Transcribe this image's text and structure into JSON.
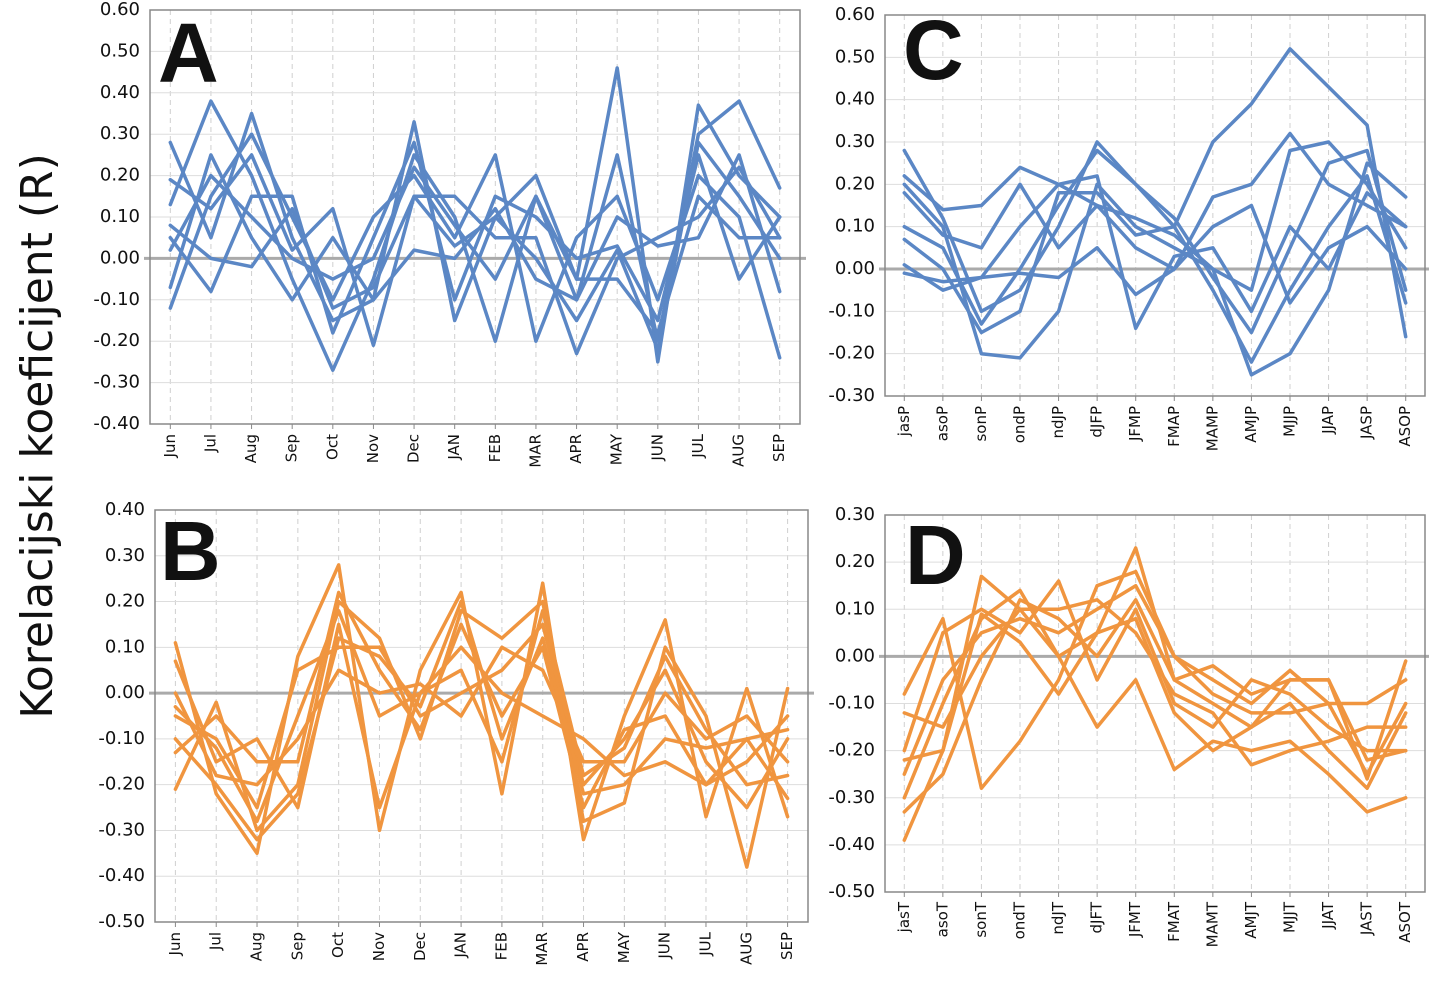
{
  "ylabel": "Korelacijski koeficijent (R)",
  "chart_data": [
    {
      "type": "line",
      "panel_label": "A",
      "color": "#5b87c5",
      "grid": true,
      "categories": [
        "Jun",
        "Jul",
        "Aug",
        "Sep",
        "Oct",
        "Nov",
        "Dec",
        "JAN",
        "FEB",
        "MAR",
        "APR",
        "MAY",
        "JUN",
        "JUL",
        "AUG",
        "SEP"
      ],
      "ylim": [
        -0.4,
        0.6
      ],
      "yticks": [
        {
          "value": 0.6,
          "label": "0.60"
        },
        {
          "value": 0.5,
          "label": "0.50"
        },
        {
          "value": 0.4,
          "label": "0.40"
        },
        {
          "value": 0.3,
          "label": "0.30"
        },
        {
          "value": 0.2,
          "label": "0.20"
        },
        {
          "value": 0.1,
          "label": "0.10"
        },
        {
          "value": 0,
          "label": "0.00"
        },
        {
          "value": -0.1,
          "label": "-0.10"
        },
        {
          "value": -0.2,
          "label": "-0.20"
        },
        {
          "value": -0.3,
          "label": "-0.30"
        },
        {
          "value": -0.4,
          "label": "-0.40"
        }
      ],
      "series": [
        {
          "values": [
            0.28,
            0.05,
            0.35,
            0.05,
            -0.15,
            -0.1,
            0.33,
            -0.15,
            0.1,
            0.2,
            -0.05,
            0.46,
            -0.25,
            0.37,
            0.2,
            0.1
          ]
        },
        {
          "values": [
            0.13,
            0.38,
            0.2,
            -0.05,
            -0.27,
            -0.05,
            0.25,
            0.1,
            -0.2,
            0.15,
            -0.1,
            0.25,
            -0.2,
            0.3,
            0.38,
            0.17
          ]
        },
        {
          "values": [
            -0.12,
            0.15,
            0.3,
            0.1,
            -0.1,
            0.1,
            0.2,
            0.05,
            0.25,
            -0.2,
            0.05,
            0.15,
            -0.1,
            0.2,
            0.1,
            -0.24
          ]
        },
        {
          "values": [
            0.19,
            0.12,
            0.25,
            0.02,
            0.12,
            -0.21,
            0.15,
            0.15,
            0.05,
            0.05,
            -0.23,
            0.0,
            0.05,
            0.1,
            0.22,
            0.05
          ]
        },
        {
          "values": [
            0.05,
            -0.08,
            0.15,
            0.15,
            -0.18,
            0.05,
            0.28,
            -0.1,
            0.15,
            0.1,
            0.0,
            0.03,
            -0.15,
            0.25,
            -0.05,
            0.1
          ]
        },
        {
          "values": [
            -0.07,
            0.25,
            0.05,
            -0.1,
            0.05,
            -0.1,
            0.02,
            0.0,
            0.12,
            -0.05,
            -0.1,
            0.1,
            0.03,
            0.05,
            0.25,
            -0.08
          ]
        },
        {
          "values": [
            0.02,
            0.2,
            0.1,
            0.0,
            -0.05,
            0.0,
            0.22,
            0.08,
            -0.05,
            0.15,
            -0.05,
            -0.05,
            -0.18,
            0.15,
            0.05,
            0.05
          ]
        },
        {
          "values": [
            0.08,
            0.0,
            -0.02,
            0.12,
            -0.12,
            -0.07,
            0.15,
            0.03,
            0.1,
            0.0,
            -0.15,
            0.02,
            -0.22,
            0.28,
            0.15,
            0.0
          ]
        }
      ]
    },
    {
      "type": "line",
      "panel_label": "B",
      "color": "#f0953f",
      "grid": true,
      "categories": [
        "Jun",
        "Jul",
        "Aug",
        "Sep",
        "Oct",
        "Nov",
        "Dec",
        "JAN",
        "FEB",
        "MAR",
        "APR",
        "MAY",
        "JUN",
        "JUL",
        "AUG",
        "SEP"
      ],
      "ylim": [
        -0.5,
        0.4
      ],
      "yticks": [
        {
          "value": 0.4,
          "label": "0.40"
        },
        {
          "value": 0.3,
          "label": "0.30"
        },
        {
          "value": 0.2,
          "label": "0.20"
        },
        {
          "value": 0.1,
          "label": "0.10"
        },
        {
          "value": 0,
          "label": "0.00"
        },
        {
          "value": -0.1,
          "label": "-0.10"
        },
        {
          "value": -0.2,
          "label": "-0.20"
        },
        {
          "value": -0.3,
          "label": "-0.30"
        },
        {
          "value": -0.4,
          "label": "-0.40"
        },
        {
          "value": -0.5,
          "label": "-0.50"
        }
      ],
      "series": [
        {
          "values": [
            0.11,
            -0.22,
            -0.35,
            0.08,
            0.28,
            -0.3,
            0.05,
            0.22,
            -0.22,
            0.24,
            -0.32,
            -0.05,
            0.16,
            -0.27,
            0.01,
            -0.27
          ]
        },
        {
          "values": [
            -0.21,
            -0.02,
            -0.3,
            -0.2,
            0.2,
            0.12,
            -0.1,
            0.18,
            0.12,
            0.2,
            -0.28,
            -0.24,
            0.1,
            -0.05,
            -0.38,
            0.01
          ]
        },
        {
          "values": [
            0.07,
            -0.15,
            -0.1,
            -0.25,
            0.15,
            -0.25,
            0.0,
            0.1,
            0.0,
            -0.05,
            -0.1,
            -0.18,
            -0.15,
            -0.2,
            -0.1,
            -0.23
          ]
        },
        {
          "values": [
            -0.05,
            -0.1,
            -0.25,
            0.05,
            0.1,
            0.1,
            -0.05,
            0.0,
            0.05,
            0.15,
            -0.2,
            -0.1,
            0.05,
            -0.15,
            -0.25,
            -0.1
          ]
        },
        {
          "values": [
            0.0,
            -0.18,
            -0.2,
            -0.1,
            0.05,
            0.0,
            0.02,
            -0.05,
            0.1,
            0.05,
            -0.15,
            -0.15,
            0.0,
            -0.1,
            -0.05,
            -0.15
          ]
        },
        {
          "values": [
            -0.13,
            -0.05,
            -0.15,
            -0.15,
            0.22,
            0.05,
            -0.08,
            0.15,
            -0.05,
            0.1,
            -0.25,
            -0.08,
            -0.05,
            -0.2,
            -0.15,
            -0.05
          ]
        },
        {
          "values": [
            -0.03,
            -0.12,
            -0.28,
            -0.05,
            0.18,
            -0.05,
            0.0,
            0.05,
            -0.15,
            0.18,
            -0.18,
            -0.12,
            0.08,
            -0.08,
            -0.2,
            -0.18
          ]
        },
        {
          "values": [
            -0.1,
            -0.2,
            -0.32,
            -0.22,
            0.12,
            0.08,
            -0.03,
            0.2,
            -0.1,
            0.12,
            -0.22,
            -0.2,
            -0.1,
            -0.12,
            -0.1,
            -0.08
          ]
        }
      ]
    },
    {
      "type": "line",
      "panel_label": "C",
      "color": "#5b87c5",
      "grid": true,
      "categories": [
        "jasP",
        "asoP",
        "sonP",
        "ondP",
        "ndJP",
        "dJFP",
        "JFMP",
        "FMAP",
        "MAMP",
        "AMJP",
        "MJJP",
        "JJAP",
        "JASP",
        "ASOP"
      ],
      "ylim": [
        -0.3,
        0.6
      ],
      "yticks": [
        {
          "value": 0.6,
          "label": "0.60"
        },
        {
          "value": 0.5,
          "label": "0.50"
        },
        {
          "value": 0.4,
          "label": "0.40"
        },
        {
          "value": 0.3,
          "label": "0.30"
        },
        {
          "value": 0.2,
          "label": "0.20"
        },
        {
          "value": 0.1,
          "label": "0.10"
        },
        {
          "value": 0,
          "label": "0.00"
        },
        {
          "value": -0.1,
          "label": "-0.10"
        },
        {
          "value": -0.2,
          "label": "-0.20"
        },
        {
          "value": -0.3,
          "label": "-0.30"
        }
      ],
      "series": [
        {
          "values": [
            0.28,
            0.12,
            -0.1,
            -0.05,
            0.1,
            0.3,
            0.2,
            0.1,
            0.3,
            0.39,
            0.52,
            0.43,
            0.34,
            -0.16
          ]
        },
        {
          "values": [
            0.2,
            0.1,
            -0.2,
            -0.21,
            -0.1,
            0.2,
            0.1,
            0.05,
            0.0,
            -0.25,
            -0.2,
            -0.05,
            0.25,
            0.17
          ]
        },
        {
          "values": [
            0.22,
            0.14,
            0.15,
            0.24,
            0.2,
            0.15,
            0.05,
            0.0,
            0.17,
            0.2,
            0.32,
            0.2,
            0.15,
            0.1
          ]
        },
        {
          "values": [
            0.1,
            0.05,
            -0.13,
            0.0,
            0.15,
            0.28,
            0.2,
            0.12,
            -0.02,
            -0.15,
            0.05,
            0.25,
            0.28,
            -0.05
          ]
        },
        {
          "values": [
            0.01,
            -0.05,
            -0.02,
            0.1,
            0.2,
            0.22,
            -0.14,
            0.03,
            0.05,
            -0.1,
            0.1,
            0.0,
            0.18,
            0.1
          ]
        },
        {
          "values": [
            0.18,
            0.08,
            0.05,
            0.2,
            0.05,
            0.15,
            0.12,
            0.08,
            0.0,
            -0.05,
            0.28,
            0.3,
            0.2,
            0.05
          ]
        },
        {
          "values": [
            -0.01,
            -0.03,
            -0.02,
            -0.01,
            -0.02,
            0.05,
            -0.06,
            0.0,
            0.1,
            0.15,
            -0.08,
            0.05,
            0.1,
            0.0
          ]
        },
        {
          "values": [
            0.07,
            0.0,
            -0.15,
            -0.1,
            0.18,
            0.18,
            0.08,
            0.1,
            -0.05,
            -0.22,
            -0.05,
            0.1,
            0.22,
            -0.08
          ]
        }
      ]
    },
    {
      "type": "line",
      "panel_label": "D",
      "color": "#f0953f",
      "grid": true,
      "categories": [
        "jasT",
        "asoT",
        "sonT",
        "ondT",
        "ndJT",
        "dJFT",
        "JFMT",
        "FMAT",
        "MAMT",
        "AMJT",
        "MJJT",
        "JJAT",
        "JAST",
        "ASOT"
      ],
      "ylim": [
        -0.5,
        0.3
      ],
      "yticks": [
        {
          "value": 0.3,
          "label": "0.30"
        },
        {
          "value": 0.2,
          "label": "0.20"
        },
        {
          "value": 0.1,
          "label": "0.10"
        },
        {
          "value": 0,
          "label": "0.00"
        },
        {
          "value": -0.1,
          "label": "-0.10"
        },
        {
          "value": -0.2,
          "label": "-0.20"
        },
        {
          "value": -0.3,
          "label": "-0.30"
        },
        {
          "value": -0.4,
          "label": "-0.40"
        },
        {
          "value": -0.5,
          "label": "-0.50"
        }
      ],
      "series": [
        {
          "values": [
            -0.39,
            -0.2,
            0.17,
            0.1,
            0.0,
            0.05,
            0.23,
            -0.05,
            -0.1,
            -0.15,
            -0.05,
            -0.05,
            -0.26,
            -0.01
          ]
        },
        {
          "values": [
            -0.08,
            0.08,
            -0.28,
            -0.18,
            -0.05,
            0.15,
            0.18,
            0.0,
            -0.05,
            -0.1,
            -0.03,
            -0.1,
            -0.1,
            -0.05
          ]
        },
        {
          "values": [
            -0.3,
            -0.1,
            0.08,
            0.14,
            0.0,
            -0.15,
            -0.05,
            -0.24,
            -0.18,
            -0.2,
            -0.18,
            -0.25,
            -0.33,
            -0.3
          ]
        },
        {
          "values": [
            -0.2,
            0.05,
            0.1,
            0.05,
            0.16,
            -0.05,
            0.1,
            -0.1,
            -0.15,
            -0.05,
            -0.08,
            -0.15,
            -0.2,
            -0.2
          ]
        },
        {
          "values": [
            -0.25,
            -0.05,
            0.05,
            0.08,
            0.05,
            0.1,
            0.15,
            0.0,
            -0.08,
            -0.12,
            -0.12,
            -0.1,
            -0.25,
            -0.1
          ]
        },
        {
          "values": [
            -0.12,
            -0.15,
            0.0,
            0.1,
            0.1,
            0.12,
            0.05,
            -0.08,
            -0.12,
            -0.23,
            -0.2,
            -0.18,
            -0.15,
            -0.15
          ]
        },
        {
          "values": [
            -0.33,
            -0.25,
            -0.05,
            0.12,
            0.08,
            0.0,
            0.12,
            -0.05,
            -0.02,
            -0.08,
            -0.05,
            -0.05,
            -0.22,
            -0.2
          ]
        },
        {
          "values": [
            -0.22,
            -0.2,
            0.09,
            0.03,
            -0.08,
            0.05,
            0.08,
            -0.12,
            -0.2,
            -0.15,
            -0.1,
            -0.2,
            -0.28,
            -0.12
          ]
        }
      ]
    }
  ]
}
